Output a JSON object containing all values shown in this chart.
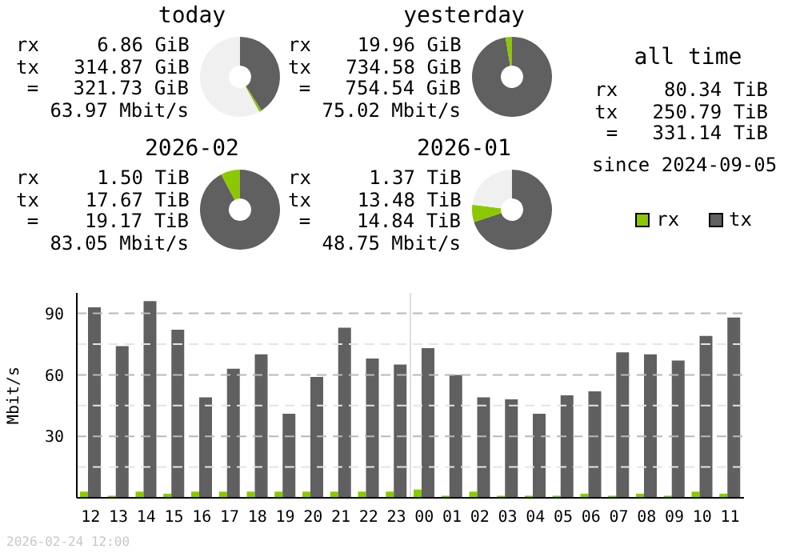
{
  "chart_data": [
    {
      "type": "donut",
      "title": "today",
      "categories": [
        null,
        null,
        null
      ],
      "values": [
        41,
        1,
        58
      ],
      "colors": [
        "#606060",
        "#8cc800",
        "#f0f0f0"
      ],
      "annotations": [
        "rx     6.86 GiB",
        "tx   314.87 GiB",
        "=   321.73 GiB",
        "63.97 Mbit/s"
      ]
    },
    {
      "type": "donut",
      "title": "yesterday",
      "categories": [
        null,
        null,
        null
      ],
      "values": [
        97.4,
        2.6,
        0
      ],
      "colors": [
        "#606060",
        "#8cc800",
        "#f0f0f0"
      ],
      "annotations": [
        "rx    19.96 GiB",
        "tx   734.58 GiB",
        "=   754.54 GiB",
        "75.02 Mbit/s"
      ]
    },
    {
      "type": "other",
      "title": "all time",
      "annotations": [
        "rx    80.34 TiB",
        "tx   250.79 TiB",
        "=   331.14 TiB",
        "since 2024-09-05"
      ]
    },
    {
      "type": "donut",
      "title": "2026-02",
      "categories": [
        null,
        null,
        null
      ],
      "values": [
        92.2,
        7.8,
        0
      ],
      "colors": [
        "#606060",
        "#8cc800",
        "#f0f0f0"
      ],
      "annotations": [
        "rx     1.50 TiB",
        "tx    17.67 TiB",
        "=    19.17 TiB",
        "83.05 Mbit/s"
      ]
    },
    {
      "type": "donut",
      "title": "2026-01",
      "categories": [
        null,
        null,
        null
      ],
      "values": [
        70,
        7,
        23
      ],
      "colors": [
        "#606060",
        "#8cc800",
        "#f0f0f0"
      ],
      "annotations": [
        "rx     1.37 TiB",
        "tx    13.48 TiB",
        "=    14.84 TiB",
        "48.75 Mbit/s"
      ]
    },
    {
      "type": "bar",
      "ylabel": "Mbit/s",
      "categories": [
        "12",
        "13",
        "14",
        "15",
        "16",
        "17",
        "18",
        "19",
        "20",
        "21",
        "22",
        "23",
        "00",
        "01",
        "02",
        "03",
        "04",
        "05",
        "06",
        "07",
        "08",
        "09",
        "10",
        "11"
      ],
      "series": [
        {
          "name": "rx",
          "color": "#8cc800",
          "values": [
            3,
            1,
            3,
            2,
            3,
            3,
            3,
            3,
            3,
            3,
            3,
            3,
            4,
            1,
            3,
            1,
            1,
            1,
            2,
            1,
            2,
            1,
            3,
            2
          ]
        },
        {
          "name": "tx",
          "color": "#606060",
          "values": [
            93,
            74,
            96,
            82,
            49,
            63,
            70,
            41,
            59,
            83,
            68,
            65,
            73,
            60,
            49,
            48,
            41,
            50,
            52,
            71,
            70,
            67,
            79,
            88
          ]
        }
      ],
      "ylim": [
        0,
        100
      ],
      "yticks": [
        {
          "value": 15,
          "label": null
        },
        30,
        {
          "value": 45,
          "label": null
        },
        60,
        {
          "value": 75,
          "label": null
        },
        90
      ],
      "grid": "y",
      "legend": "top right",
      "ref_lines": [
        {
          "axis": "x",
          "value": "00",
          "color": "#dddddd"
        }
      ],
      "annotations": [
        "2026-02-24 12:00"
      ]
    }
  ]
}
